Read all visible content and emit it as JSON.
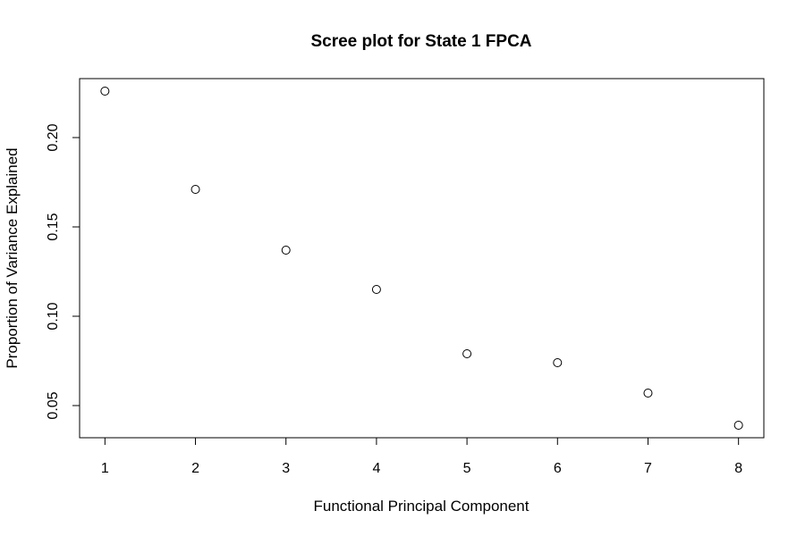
{
  "chart_data": {
    "type": "scatter",
    "title": "Scree plot for State 1 FPCA",
    "xlabel": "Functional Principal Component",
    "ylabel": "Proportion of Variance Explained",
    "x": [
      1,
      2,
      3,
      4,
      5,
      6,
      7,
      8
    ],
    "y": [
      0.226,
      0.171,
      0.137,
      0.115,
      0.079,
      0.074,
      0.057,
      0.039
    ],
    "xlim": [
      0.72,
      8.28
    ],
    "ylim": [
      0.032,
      0.233
    ],
    "xticks": [
      1,
      2,
      3,
      4,
      5,
      6,
      7,
      8
    ],
    "xtick_labels": [
      "1",
      "2",
      "3",
      "4",
      "5",
      "6",
      "7",
      "8"
    ],
    "yticks": [
      0.05,
      0.1,
      0.15,
      0.2
    ],
    "ytick_labels": [
      "0.05",
      "0.10",
      "0.15",
      "0.20"
    ],
    "grid": false,
    "marker": "open-circle"
  }
}
